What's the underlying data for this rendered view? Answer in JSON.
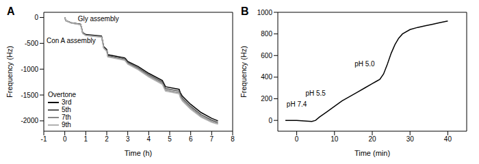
{
  "chart_data": [
    {
      "type": "line",
      "title": "A",
      "x_label": "Time (h)",
      "y_label": "Frequency (Hz)",
      "x": [
        0,
        0.05,
        0.3,
        0.75,
        0.8,
        0.85,
        1.0,
        1.75,
        1.8,
        1.85,
        2.0,
        2.05,
        2.85,
        2.9,
        3.0,
        3.5,
        4.0,
        4.65,
        4.7,
        4.8,
        5.45,
        5.5,
        5.6,
        6.0,
        6.5,
        7.0,
        7.3
      ],
      "series": [
        {
          "name": "3rd",
          "color": "#000000",
          "values": [
            0,
            -60,
            -100,
            -130,
            -200,
            -290,
            -330,
            -360,
            -450,
            -560,
            -620,
            -720,
            -780,
            -800,
            -850,
            -950,
            -1080,
            -1220,
            -1260,
            -1340,
            -1390,
            -1450,
            -1520,
            -1680,
            -1840,
            -1950,
            -2000
          ]
        },
        {
          "name": "5th",
          "color": "#555555",
          "values": [
            0,
            -62,
            -104,
            -135,
            -205,
            -298,
            -338,
            -368,
            -462,
            -574,
            -636,
            -738,
            -800,
            -820,
            -870,
            -975,
            -1108,
            -1250,
            -1292,
            -1375,
            -1425,
            -1490,
            -1560,
            -1720,
            -1880,
            -1985,
            -2030
          ]
        },
        {
          "name": "7th",
          "color": "#888888",
          "values": [
            0,
            -63,
            -106,
            -138,
            -210,
            -305,
            -345,
            -376,
            -470,
            -585,
            -648,
            -752,
            -815,
            -836,
            -890,
            -995,
            -1130,
            -1275,
            -1320,
            -1405,
            -1455,
            -1520,
            -1590,
            -1750,
            -1910,
            -2010,
            -2050
          ]
        },
        {
          "name": "9th",
          "color": "#b0b0b0",
          "values": [
            0,
            -64,
            -108,
            -140,
            -214,
            -310,
            -350,
            -382,
            -478,
            -594,
            -658,
            -764,
            -828,
            -850,
            -905,
            -1012,
            -1150,
            -1295,
            -1340,
            -1425,
            -1478,
            -1545,
            -1615,
            -1775,
            -1930,
            -2030,
            -2065
          ]
        }
      ],
      "xlim": [
        -1,
        8
      ],
      "xticks": [
        -1,
        0,
        1,
        2,
        3,
        4,
        5,
        6,
        7,
        8
      ],
      "ylim": [
        -2200,
        100
      ],
      "yticks": [
        -2000,
        -1500,
        -1000,
        -500,
        0
      ],
      "legend": "lower left",
      "legend_title": "Overtone",
      "annotations": [
        {
          "text": "Gly assembly",
          "x": 1.6,
          "y": -20
        },
        {
          "text": "Con A assembly",
          "x": 0.3,
          "y": -450
        }
      ]
    },
    {
      "type": "line",
      "title": "B",
      "x_label": "Time (min)",
      "y_label": "Frequency (Hz)",
      "x": [
        -3,
        0,
        2,
        4,
        5,
        6,
        8,
        10,
        12,
        14,
        16,
        18,
        20,
        21,
        22,
        23,
        24,
        25,
        26,
        27,
        28,
        30,
        32,
        34,
        36,
        38,
        40
      ],
      "values": [
        0,
        0,
        -5,
        -10,
        0,
        30,
        80,
        130,
        180,
        220,
        260,
        300,
        340,
        360,
        380,
        430,
        520,
        620,
        700,
        760,
        800,
        840,
        860,
        875,
        890,
        905,
        920
      ],
      "color": "#000000",
      "xlim": [
        -5,
        45
      ],
      "xticks": [
        0,
        10,
        20,
        30,
        40
      ],
      "ylim": [
        -100,
        1000
      ],
      "yticks": [
        0,
        200,
        400,
        600,
        800,
        1000
      ],
      "annotations": [
        {
          "text": "pH 7.4",
          "x": 0,
          "y": 150
        },
        {
          "text": "pH 5.5",
          "x": 5,
          "y": 250
        },
        {
          "text": "pH 5.0",
          "x": 18,
          "y": 520
        }
      ]
    }
  ]
}
